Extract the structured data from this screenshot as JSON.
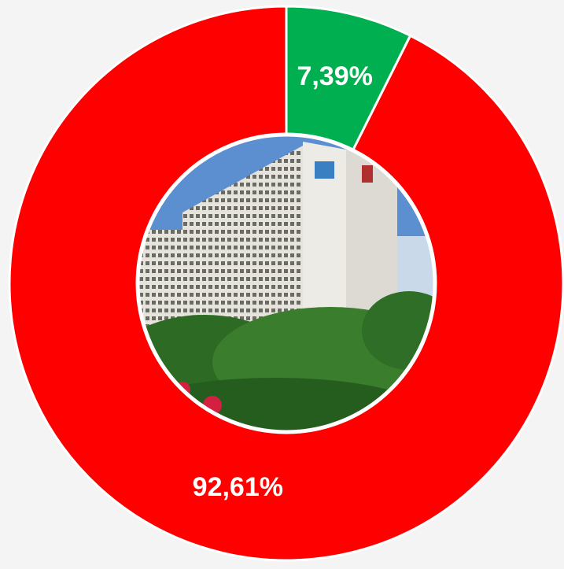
{
  "chart_data": {
    "type": "donut",
    "categories": [
      null,
      null
    ],
    "values": [
      7.39,
      92.61
    ],
    "value_labels": [
      "7,39%",
      "92,61%"
    ],
    "colors": [
      "#00b050",
      "#ff0000"
    ]
  }
}
